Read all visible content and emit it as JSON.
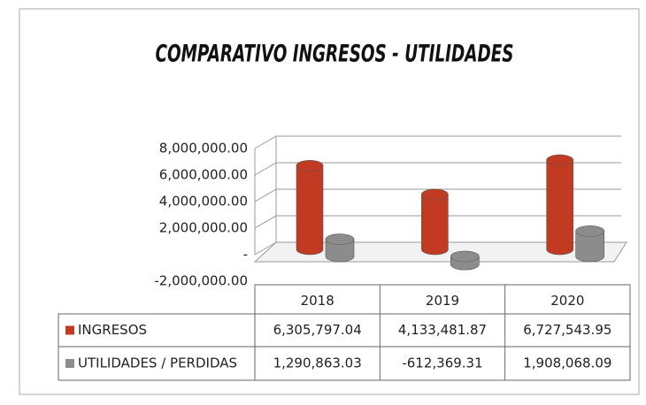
{
  "chart_data": {
    "type": "bar",
    "title": "COMPARATIVO INGRESOS - UTILIDADES",
    "categories": [
      "2018",
      "2019",
      "2020"
    ],
    "series": [
      {
        "name": "INGRESOS",
        "color": "#c23a22",
        "values": [
          6305797.04,
          4133481.87,
          6727543.95
        ],
        "value_labels": [
          "6,305,797.04",
          "4,133,481.87",
          "6,727,543.95"
        ]
      },
      {
        "name": "UTILIDADES / PERDIDAS",
        "color": "#8c8c8c",
        "values": [
          1290863.03,
          -612369.31,
          1908068.09
        ],
        "value_labels": [
          "1,290,863.03",
          "-612,369.31",
          "1,908,068.09"
        ]
      }
    ],
    "ylim": [
      -2000000,
      8000000
    ],
    "yticks": [
      {
        "value": -2000000,
        "label": "-2,000,000.00"
      },
      {
        "value": 0,
        "label": "-"
      },
      {
        "value": 2000000,
        "label": "2,000,000.00"
      },
      {
        "value": 4000000,
        "label": "4,000,000.00"
      },
      {
        "value": 6000000,
        "label": "6,000,000.00"
      },
      {
        "value": 8000000,
        "label": "8,000,000.00"
      }
    ],
    "grid": true
  }
}
